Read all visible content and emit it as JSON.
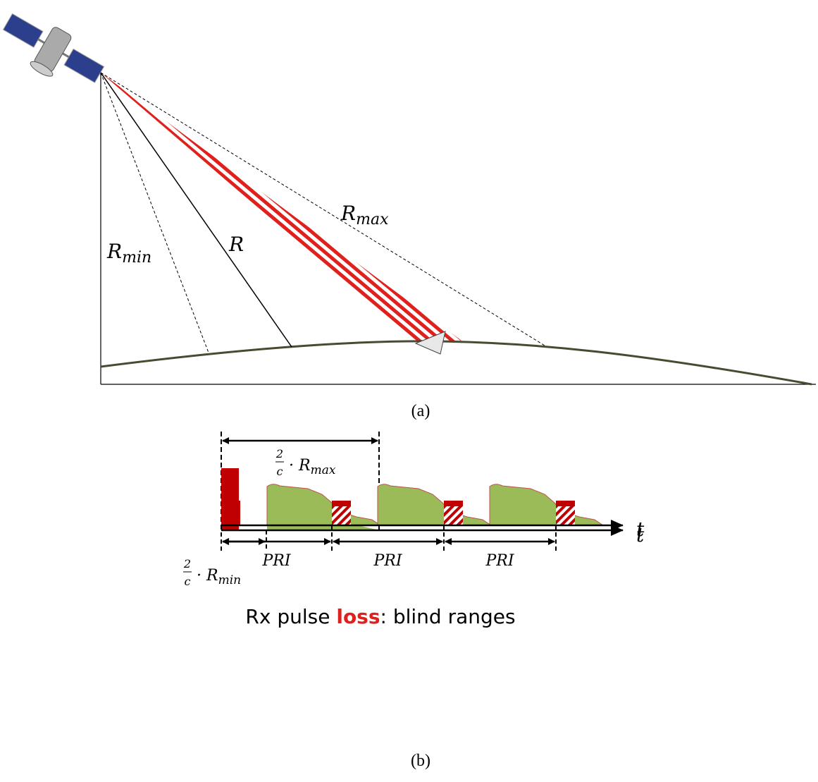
{
  "panel_a": {
    "labels": {
      "r_max": {
        "base": "R",
        "sub": "max"
      },
      "r_min": {
        "base": "R",
        "sub": "min"
      },
      "r": "R"
    },
    "caption": "(a)"
  },
  "panel_b": {
    "formula_max": {
      "numerator": "2",
      "denominator": "c",
      "dot": "·",
      "base": "R",
      "sub": "max"
    },
    "formula_min": {
      "numerator": "2",
      "denominator": "c",
      "dot": "·",
      "base": "R",
      "sub": "min"
    },
    "axis_label_top": "t",
    "heading": {
      "before": "Rx pulse ",
      "highlight": "loss",
      "after": ": blind ranges"
    },
    "axis_label_bottom": "t",
    "intervals": [
      "PRI",
      "PRI",
      "PRI"
    ],
    "caption": "(b)"
  }
}
